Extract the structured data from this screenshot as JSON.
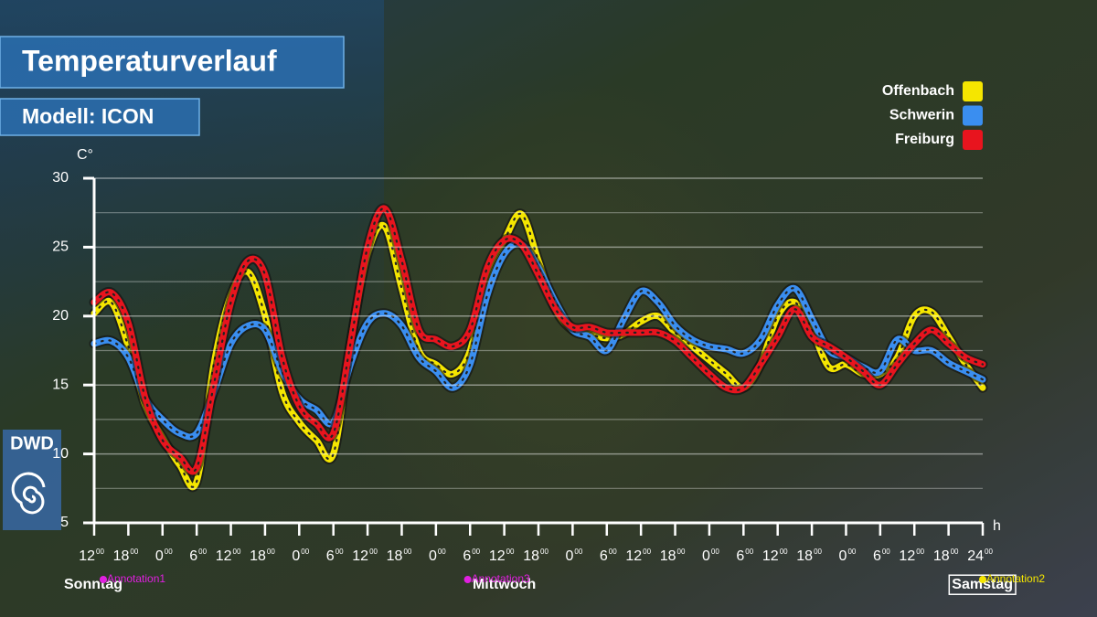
{
  "chart_data": {
    "type": "line",
    "title": "Temperaturverlauf",
    "subtitle": "Modell: ICON",
    "y_label": "C°",
    "x_label": "h",
    "logo": "DWD",
    "legend": "top-right",
    "grid": true,
    "xlim": [
      0,
      156
    ],
    "xticks": [
      {
        "value": 0,
        "label": "12"
      },
      {
        "value": 6,
        "label": "18"
      },
      {
        "value": 12,
        "label": "0"
      },
      {
        "value": 18,
        "label": "6"
      },
      {
        "value": 24,
        "label": "12"
      },
      {
        "value": 30,
        "label": "18"
      },
      {
        "value": 36,
        "label": "0"
      },
      {
        "value": 42,
        "label": "6"
      },
      {
        "value": 48,
        "label": "12"
      },
      {
        "value": 54,
        "label": "18"
      },
      {
        "value": 60,
        "label": "0"
      },
      {
        "value": 66,
        "label": "6"
      },
      {
        "value": 72,
        "label": "12"
      },
      {
        "value": 78,
        "label": "18"
      },
      {
        "value": 84,
        "label": "0"
      },
      {
        "value": 90,
        "label": "6"
      },
      {
        "value": 96,
        "label": "12"
      },
      {
        "value": 102,
        "label": "18"
      },
      {
        "value": 108,
        "label": "0"
      },
      {
        "value": 114,
        "label": "6"
      },
      {
        "value": 120,
        "label": "12"
      },
      {
        "value": 126,
        "label": "18"
      },
      {
        "value": 132,
        "label": "0"
      },
      {
        "value": 138,
        "label": "6"
      },
      {
        "value": 144,
        "label": "12"
      },
      {
        "value": 150,
        "label": "18"
      },
      {
        "value": 156,
        "label": "24"
      }
    ],
    "xtick_suffix": "00",
    "ylim": [
      5,
      30
    ],
    "yticks": [
      5,
      10,
      15,
      20,
      25,
      30
    ],
    "minor_yticks": [
      7.5,
      12.5,
      17.5,
      22.5,
      27.5
    ],
    "days": [
      {
        "x": 0,
        "label": "Sonntag"
      },
      {
        "x": 72,
        "label": "Mittwoch"
      },
      {
        "x": 156,
        "label": "Samstag"
      }
    ],
    "annotations": [
      {
        "x": 0,
        "label": "Annotation1",
        "color": "#e020e0"
      },
      {
        "x": 72,
        "label": "Annotation3",
        "color": "#e020e0"
      },
      {
        "x": 156,
        "label": "Annotation2",
        "color": "#f5e600"
      }
    ],
    "x": [
      0,
      3,
      6,
      9,
      12,
      15,
      18,
      21,
      24,
      27,
      30,
      33,
      36,
      39,
      42,
      45,
      48,
      51,
      54,
      57,
      60,
      63,
      66,
      69,
      72,
      75,
      78,
      81,
      84,
      87,
      90,
      93,
      96,
      99,
      102,
      105,
      108,
      111,
      114,
      117,
      120,
      123,
      126,
      129,
      132,
      135,
      138,
      141,
      144,
      147,
      150,
      153,
      156
    ],
    "series": [
      {
        "name": "Offenbach",
        "color": "#f5e600",
        "values": [
          20.2,
          21.0,
          17.8,
          13.5,
          11.2,
          9.2,
          8.0,
          16.5,
          21.5,
          23.2,
          20.0,
          14.5,
          12.3,
          11.0,
          10.0,
          18.0,
          24.5,
          26.5,
          22.0,
          17.5,
          16.5,
          15.8,
          17.5,
          23.0,
          25.5,
          27.4,
          24.0,
          20.5,
          19.0,
          18.7,
          18.4,
          18.7,
          19.6,
          20.0,
          18.8,
          17.8,
          16.8,
          15.8,
          14.8,
          16.5,
          20.0,
          21.0,
          19.0,
          16.3,
          16.5,
          15.8,
          15.8,
          17.0,
          20.0,
          20.3,
          18.5,
          16.5,
          14.8
        ]
      },
      {
        "name": "Schwerin",
        "color": "#3a8ef0",
        "values": [
          18.0,
          18.2,
          17.0,
          14.0,
          12.5,
          11.5,
          11.5,
          14.5,
          18.0,
          19.3,
          19.0,
          16.0,
          14.0,
          13.2,
          12.3,
          16.5,
          19.5,
          20.2,
          19.3,
          17.0,
          16.0,
          14.8,
          16.5,
          21.5,
          24.5,
          25.2,
          23.5,
          21.0,
          19.0,
          18.5,
          17.5,
          19.8,
          21.8,
          21.0,
          19.3,
          18.3,
          17.8,
          17.6,
          17.3,
          18.3,
          20.8,
          22.0,
          19.8,
          17.5,
          17.0,
          16.3,
          16.0,
          18.3,
          17.5,
          17.5,
          16.6,
          16.0,
          15.4
        ]
      },
      {
        "name": "Freiburg",
        "color": "#e8141e",
        "values": [
          21.0,
          21.7,
          19.5,
          14.0,
          11.0,
          9.8,
          9.0,
          15.0,
          21.0,
          24.0,
          23.0,
          17.0,
          13.5,
          12.2,
          11.5,
          18.0,
          25.0,
          27.8,
          24.0,
          19.0,
          18.3,
          17.8,
          19.0,
          23.5,
          25.5,
          25.2,
          23.0,
          20.5,
          19.2,
          19.2,
          18.8,
          18.8,
          18.8,
          18.8,
          18.2,
          17.0,
          15.8,
          14.8,
          14.8,
          16.5,
          18.5,
          20.5,
          18.5,
          17.8,
          17.0,
          16.0,
          15.0,
          16.5,
          18.0,
          19.0,
          18.0,
          17.0,
          16.5
        ]
      }
    ]
  }
}
